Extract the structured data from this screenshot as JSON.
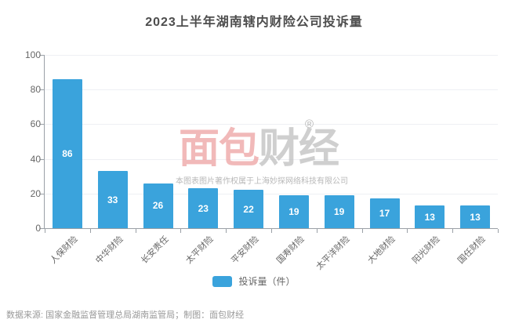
{
  "header": {
    "title": "2023上半年湖南辖内财险公司投诉量"
  },
  "chart_data": {
    "type": "bar",
    "title": "2023上半年湖南辖内财险公司投诉量",
    "categories": [
      "人保财险",
      "中华财险",
      "长安责任",
      "太平财险",
      "平安财险",
      "国寿财险",
      "太平洋财险",
      "大地财险",
      "阳光财险",
      "国任财险"
    ],
    "values": [
      86,
      33,
      26,
      23,
      22,
      19,
      19,
      17,
      13,
      13
    ],
    "series_name": "投诉量（件）",
    "xlabel": "",
    "ylabel": "",
    "ylim": [
      0,
      100
    ],
    "ytick_step": 20,
    "grid": true,
    "legend_position": "bottom",
    "bar_color": "#3aa3dc",
    "value_label_color": "#ffffff"
  },
  "legend": {
    "items": [
      {
        "label": "投诉量（件）",
        "swatch_color": "#3aa3dc"
      }
    ]
  },
  "watermark": {
    "registered": "®",
    "logo_red": "面包",
    "logo_gray": "财经",
    "copyright": "本图表图片著作权属于上海妙探网络科技有限公司"
  },
  "footer": {
    "source": "数据来源: 国家金融监督管理总局湖南监管局；制图：面包财经"
  },
  "colors": {
    "bar": "#3aa3dc",
    "title": "#4d4d4d",
    "axis": "#9aa0a6",
    "tick_label": "#666666",
    "grid": "#eef0f4",
    "source": "#999999",
    "watermark_red": "#eda2a2",
    "watermark_gray": "#bfbfbf"
  }
}
